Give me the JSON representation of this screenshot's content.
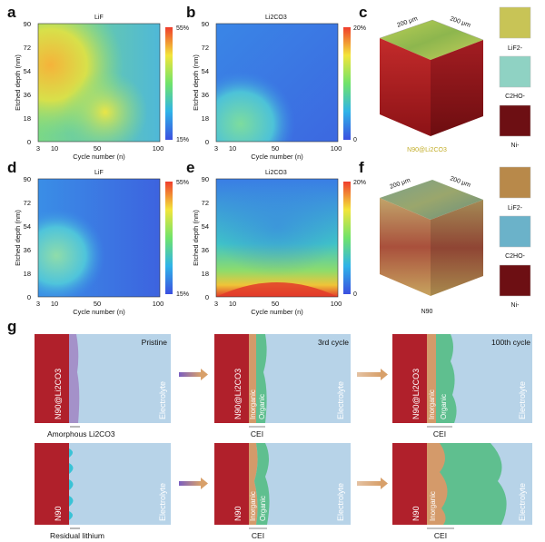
{
  "panel_labels": {
    "a": "a",
    "b": "b",
    "c": "c",
    "d": "d",
    "e": "e",
    "f": "f",
    "g": "g"
  },
  "heatmaps": [
    {
      "id": "a",
      "title": "LiF",
      "xlabel": "Cycle number (n)",
      "ylabel": "Etched depth (nm)",
      "xticks": [
        "3",
        "10",
        "50",
        "100"
      ],
      "yticks": [
        "0",
        "18",
        "36",
        "54",
        "72",
        "90"
      ],
      "cb_max": "55%",
      "cb_min": "15%"
    },
    {
      "id": "b",
      "title": "Li2CO3",
      "xlabel": "Cycle number (n)",
      "ylabel": "Etched depth (nm)",
      "xticks": [
        "3",
        "10",
        "50",
        "100"
      ],
      "yticks": [
        "0",
        "18",
        "36",
        "54",
        "72",
        "90"
      ],
      "cb_max": "20%",
      "cb_min": "0"
    },
    {
      "id": "d",
      "title": "LiF",
      "xlabel": "Cycle number (n)",
      "ylabel": "Etched depth (nm)",
      "xticks": [
        "3",
        "10",
        "50",
        "100"
      ],
      "yticks": [
        "0",
        "18",
        "36",
        "54",
        "72",
        "90"
      ],
      "cb_max": "55%",
      "cb_min": "15%"
    },
    {
      "id": "e",
      "title": "Li2CO3",
      "xlabel": "Cycle number (n)",
      "ylabel": "Etched depth (nm)",
      "xticks": [
        "3",
        "10",
        "50",
        "100"
      ],
      "yticks": [
        "0",
        "18",
        "36",
        "54",
        "72",
        "90"
      ],
      "cb_max": "20%",
      "cb_min": "0"
    }
  ],
  "cube_c": {
    "dim1": "200 μm",
    "dim2": "200 μm",
    "caption": "N90@Li2CO3",
    "side_labels": [
      "LiF2-",
      "C2HO-",
      "Ni-"
    ],
    "top_color": "#9fb84a",
    "side_color": "#a8191c"
  },
  "cube_f": {
    "dim1": "200 μm",
    "dim2": "200 μm",
    "caption": "N90",
    "side_labels": [
      "LiF2-",
      "C2HO-",
      "Ni-"
    ],
    "top_color": "#7f9a74",
    "side_color": "#b9a069"
  },
  "schematic": {
    "row1": {
      "panels": [
        {
          "header": "Pristine",
          "cathode": "N90@Li2CO3",
          "electrolyte": "Electrolyte",
          "caption": "Amorphous Li2CO3"
        },
        {
          "header": "3rd cycle",
          "cathode": "N90@Li2CO3",
          "inorganic": "Inorganic",
          "organic": "Organic",
          "electrolyte": "Electrolyte",
          "caption": "CEI"
        },
        {
          "header": "100th cycle",
          "cathode": "N90@Li2CO3",
          "inorganic": "Inorganic",
          "organic": "Organic",
          "electrolyte": "Electrolyte",
          "caption": "CEI"
        }
      ]
    },
    "row2": {
      "panels": [
        {
          "cathode": "N90",
          "electrolyte": "Electrolyte",
          "caption": "Residual lithium"
        },
        {
          "cathode": "N90",
          "inorganic": "Inorganic",
          "organic": "Organic",
          "electrolyte": "Electrolyte",
          "caption": "CEI"
        },
        {
          "cathode": "N90",
          "inorganic": "Inorganic",
          "electrolyte": "Electrolyte",
          "caption": "CEI"
        }
      ]
    }
  },
  "colors": {
    "cathode": "#b0202b",
    "electrolyte": "#b7d3e8",
    "organic": "#5fbf8f",
    "inorganic": "#d49a6a",
    "amorphous": "#a491c9",
    "residual": "#39c3d6",
    "arrow": "#d8a06a"
  }
}
